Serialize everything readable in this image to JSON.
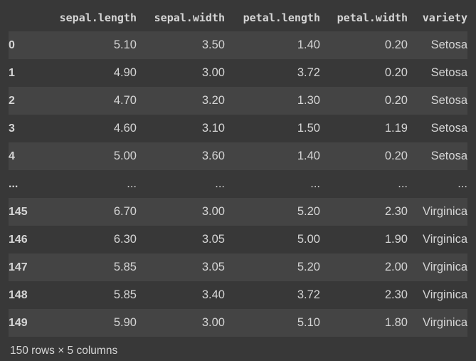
{
  "table": {
    "columns": [
      "sepal.length",
      "sepal.width",
      "petal.length",
      "petal.width",
      "variety"
    ],
    "rows": [
      {
        "index": "0",
        "cells": [
          "5.10",
          "3.50",
          "1.40",
          "0.20",
          "Setosa"
        ]
      },
      {
        "index": "1",
        "cells": [
          "4.90",
          "3.00",
          "3.72",
          "0.20",
          "Setosa"
        ]
      },
      {
        "index": "2",
        "cells": [
          "4.70",
          "3.20",
          "1.30",
          "0.20",
          "Setosa"
        ]
      },
      {
        "index": "3",
        "cells": [
          "4.60",
          "3.10",
          "1.50",
          "1.19",
          "Setosa"
        ]
      },
      {
        "index": "4",
        "cells": [
          "5.00",
          "3.60",
          "1.40",
          "0.20",
          "Setosa"
        ]
      },
      {
        "index": "...",
        "cells": [
          "...",
          "...",
          "...",
          "...",
          "..."
        ]
      },
      {
        "index": "145",
        "cells": [
          "6.70",
          "3.00",
          "5.20",
          "2.30",
          "Virginica"
        ]
      },
      {
        "index": "146",
        "cells": [
          "6.30",
          "3.05",
          "5.00",
          "1.90",
          "Virginica"
        ]
      },
      {
        "index": "147",
        "cells": [
          "5.85",
          "3.05",
          "5.20",
          "2.00",
          "Virginica"
        ]
      },
      {
        "index": "148",
        "cells": [
          "5.85",
          "3.40",
          "3.72",
          "2.30",
          "Virginica"
        ]
      },
      {
        "index": "149",
        "cells": [
          "5.90",
          "3.00",
          "5.10",
          "1.80",
          "Virginica"
        ]
      }
    ]
  },
  "footer": {
    "summary": "150 rows × 5 columns"
  },
  "colors": {
    "background": "#383838",
    "stripe": "#444444",
    "text": "#d5d5d5"
  }
}
